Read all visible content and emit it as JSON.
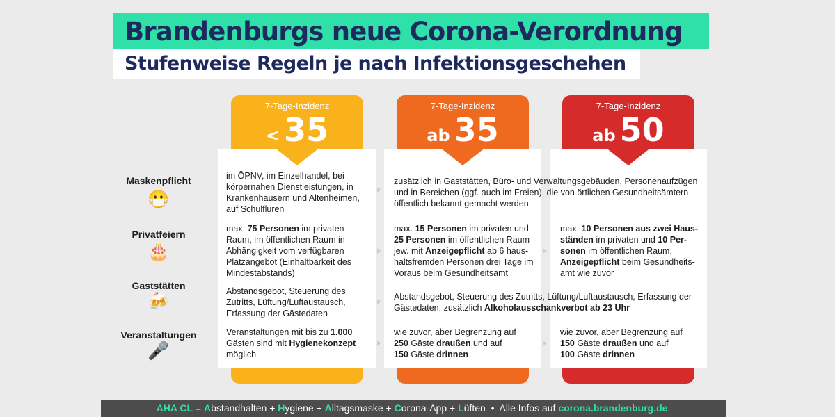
{
  "header": {
    "title": "Brandenburgs neue Corona-Verordnung",
    "subtitle": "Stufenweise Regeln je nach Infektionsgeschehen"
  },
  "levels": [
    {
      "label": "7-Tage-Inzidenz",
      "prefix": "<",
      "value": "35",
      "color": "#f9b21b"
    },
    {
      "label": "7-Tage-Inzidenz",
      "prefix": "ab",
      "value": "35",
      "color": "#ef6a1f"
    },
    {
      "label": "7-Tage-Inzidenz",
      "prefix": "ab",
      "value": "50",
      "color": "#d62b2b"
    }
  ],
  "rules": [
    {
      "label": "Maskenpflicht",
      "icon": "mask-face-icon",
      "glyph": "😷"
    },
    {
      "label": "Privatfeiern",
      "icon": "cake-icon",
      "glyph": "🎂"
    },
    {
      "label": "Gaststätten",
      "icon": "beer-mugs-icon",
      "glyph": "🍻"
    },
    {
      "label": "Veranstaltungen",
      "icon": "microphone-icon",
      "glyph": "🎤"
    }
  ],
  "cells": {
    "mask_1": {
      "l1": "im ÖPNV, im Einzelhandel, bei",
      "l2": "körpernahen Dienstleistungen, in",
      "l3": "Krankenhäusern und Altenheimen,",
      "l4": "auf Schulfluren"
    },
    "mask_23": {
      "l1": "zusätzlich in Gaststätten, Büro- und Verwaltungsgebäuden, Personenaufzügen",
      "l2": "und in Bereichen (ggf. auch im Freien), die von örtlichen Gesundheitsämtern",
      "l3": "öffentlich bekannt gemacht werden"
    },
    "party_1": {
      "a": "max. ",
      "b": "75 Personen",
      "c": " im privaten",
      "l2": "Raum, im öffentlichen Raum in",
      "l3": "Abhängigkeit vom verfügbaren",
      "l4": "Platzangebot (Einhaltbarkeit des",
      "l5": "Mindestabstands)"
    },
    "party_2": {
      "a": "max. ",
      "b": "15 Personen",
      "c": " im privaten und",
      "d": "25 Personen",
      "e": " im öffentlichen Raum –",
      "f": "jew. mit ",
      "g": "Anzeigepflicht",
      "h": " ab 6 haus-",
      "l4": "haltsfremden Personen drei Tage im",
      "l5": "Voraus beim Gesundheitsamt"
    },
    "party_3": {
      "a": "max. ",
      "b": "10 Personen aus zwei Haus-",
      "c": "ständen",
      "d": " im privaten und ",
      "e": "10 Per-",
      "f": "sonen",
      "g": " im öffentlichen Raum,",
      "h": "Anzeigepflicht",
      "i": " beim Gesundheits-",
      "l5": "amt wie zuvor"
    },
    "gast_1": {
      "l1": "Abstandsgebot, Steuerung des",
      "l2": "Zutritts, Lüftung/Luftaustausch,",
      "l3": "Erfassung der Gästedaten"
    },
    "gast_23": {
      "l1": "Abstandsgebot, Steuerung des Zutritts, Lüftung/Luftaustausch, Erfassung der",
      "a": "Gästedaten, zusätzlich ",
      "b": "Alkoholausschankverbot ab 23 Uhr"
    },
    "event_1": {
      "a": "Veranstaltungen mit bis zu ",
      "b": "1.000",
      "c": "Gästen sind mit ",
      "d": "Hygienekonzept",
      "e": "möglich"
    },
    "event_2": {
      "l1": "wie zuvor, aber Begrenzung auf",
      "a": "250",
      "b": " Gäste ",
      "c": "draußen",
      "d": " und auf",
      "e": "150",
      "f": " Gäste ",
      "g": "drinnen"
    },
    "event_3": {
      "l1": "wie zuvor, aber Begrenzung auf",
      "a": "150",
      "b": " Gäste ",
      "c": "draußen",
      "d": " und auf",
      "e": "100",
      "f": " Gäste ",
      "g": "drinnen"
    }
  },
  "footer": {
    "aha": "AHA CL",
    "eq": " = ",
    "A1": "A",
    "w1": "bstandhalten + ",
    "H": "H",
    "w2": "ygiene + ",
    "A2": "A",
    "w3": "lltagsmaske + ",
    "C": "C",
    "w4": "orona-App + ",
    "L": "L",
    "w5": "üften",
    "sep": "  •  ",
    "info": "Alle Infos auf ",
    "url": "corona.brandenburg.de",
    "dot": "."
  }
}
